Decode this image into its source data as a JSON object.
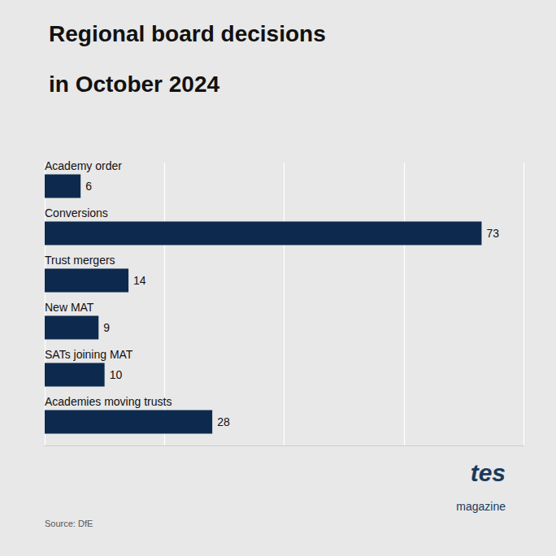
{
  "chart_data": {
    "type": "bar",
    "orientation": "horizontal",
    "title": "Regional board decisions",
    "subtitle": "in October 2024",
    "categories": [
      "Academy order",
      "Conversions",
      "Trust mergers",
      "New MAT",
      "SATs joining MAT",
      "Academies moving trusts"
    ],
    "values": [
      6,
      73,
      14,
      9,
      10,
      28
    ],
    "color": "#0d2a4e",
    "xlim": [
      0,
      80
    ],
    "xticks": [
      0,
      20,
      40,
      60,
      80
    ],
    "grid": true,
    "data_labels": true,
    "tick_labels": "y",
    "annotations": [
      "Source: DfE",
      "tes",
      "magazine"
    ]
  }
}
